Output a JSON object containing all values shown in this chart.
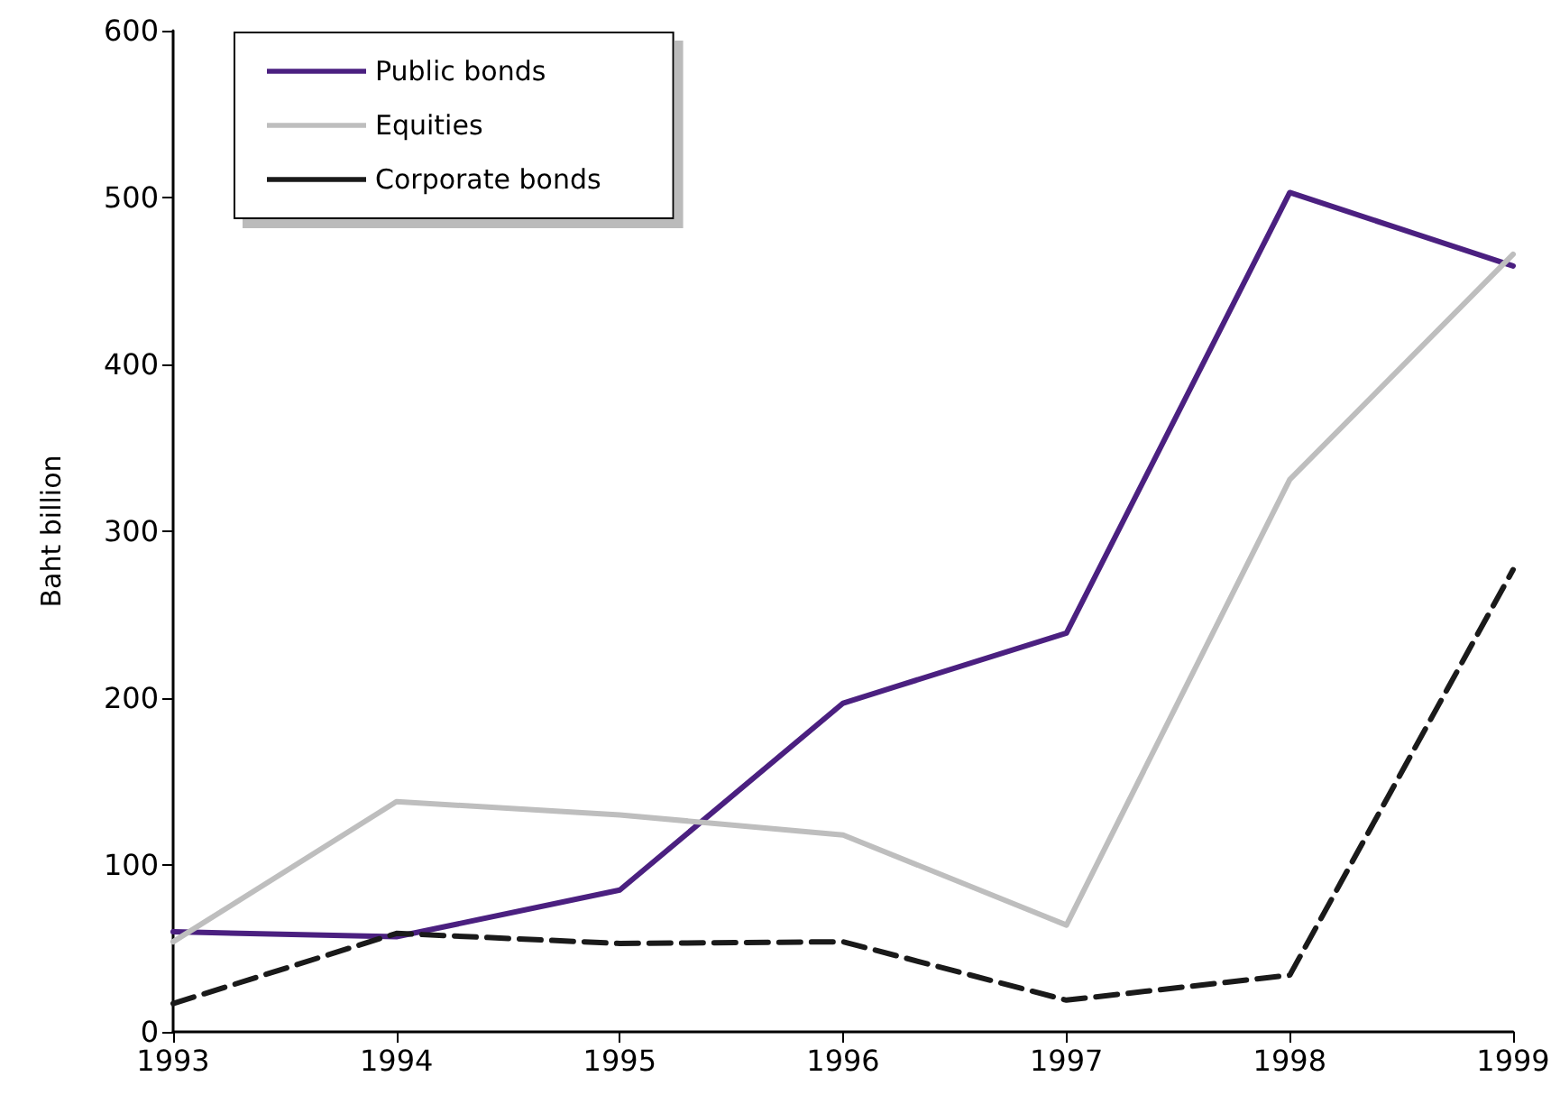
{
  "chart_data": {
    "type": "line",
    "ylabel": "Baht billion",
    "x": [
      1993,
      1994,
      1995,
      1996,
      1997,
      1998,
      1999
    ],
    "xlim": [
      1993,
      1999
    ],
    "xticks": [
      1993,
      1994,
      1995,
      1996,
      1997,
      1998,
      1999
    ],
    "ylim": [
      0,
      600
    ],
    "yticks": [
      0,
      100,
      200,
      300,
      400,
      500,
      600
    ],
    "grid": false,
    "legend": "top left",
    "marker": "none",
    "series": [
      {
        "name": "Public bonds",
        "color": "#4b2080",
        "line_style": "solid",
        "values": [
          60,
          57,
          85,
          197,
          239,
          503,
          459
        ]
      },
      {
        "name": "Equities",
        "color": "#bebebe",
        "line_style": "solid",
        "values": [
          54,
          138,
          130,
          118,
          64,
          331,
          466
        ]
      },
      {
        "name": "Corporate bonds",
        "color": "#1a1a1a",
        "line_style": "dashed",
        "values": [
          17,
          59,
          53,
          54,
          19,
          34,
          277
        ]
      }
    ]
  }
}
